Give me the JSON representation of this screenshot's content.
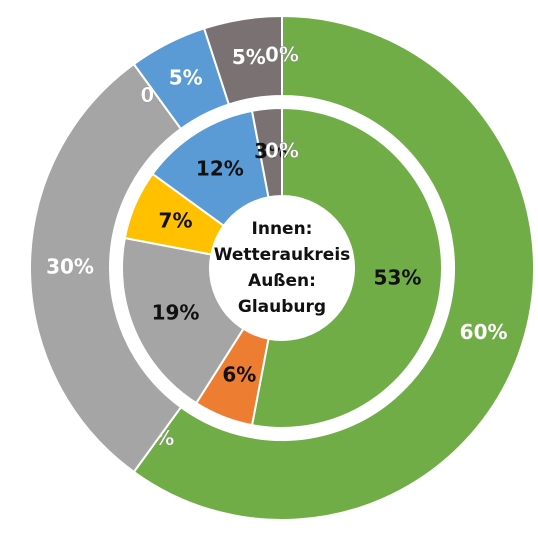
{
  "chart_data": {
    "type": "donut",
    "annotation": [
      "Innen:",
      "Wetteraukreis",
      "Außen:",
      "Glauburg"
    ],
    "series": [
      {
        "colors": [
          "#70ad47",
          "#ed7d31",
          "#a5a5a5",
          "#ffc000",
          "#5b9bd5",
          "#7a7272",
          "#ffffff"
        ],
        "values": [
          53,
          6,
          19,
          7,
          12,
          3,
          0
        ],
        "value_labels": [
          "53%",
          "6%",
          "19%",
          "7%",
          "12%",
          "3%",
          "0%"
        ]
      },
      {
        "colors": [
          "#70ad47",
          "#ed7d31",
          "#a5a5a5",
          "#ffc000",
          "#5b9bd5",
          "#7a7272",
          "#ffffff"
        ],
        "values": [
          60,
          0,
          30,
          0,
          5,
          5,
          0
        ],
        "value_labels": [
          "60%",
          "0%",
          "30%",
          "0%",
          "5%",
          "5%",
          "0%"
        ]
      }
    ]
  }
}
